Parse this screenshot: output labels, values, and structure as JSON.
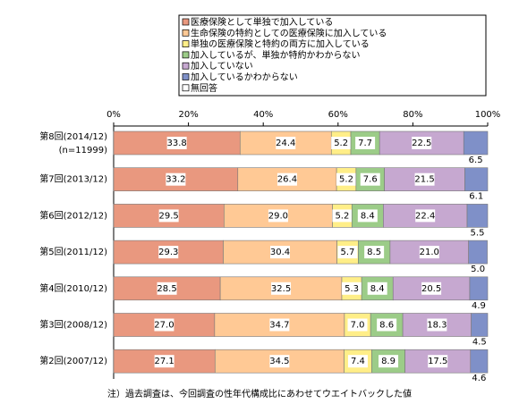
{
  "chart_data": {
    "type": "stacked-barh",
    "categories": [
      "第8回(2014/12)",
      "第7回(2013/12)",
      "第6回(2012/12)",
      "第5回(2011/12)",
      "第4回(2010/12)",
      "第3回(2008/12)",
      "第2回(2007/12)"
    ],
    "sample_size": "(n=11999)",
    "xlim": [
      0,
      100
    ],
    "xticks": [
      {
        "value": 0,
        "label": "0%"
      },
      {
        "value": 20,
        "label": "20%"
      },
      {
        "value": 40,
        "label": "40%"
      },
      {
        "value": 60,
        "label": "60%"
      },
      {
        "value": 80,
        "label": "80%"
      },
      {
        "value": 100,
        "label": "100%"
      }
    ],
    "series": [
      {
        "name": "医療保険として単独で加入している",
        "color": "#e9987f",
        "values": [
          33.8,
          33.2,
          29.5,
          29.3,
          28.5,
          27.0,
          27.1
        ],
        "value_labels": [
          "33.8",
          "33.2",
          "29.5",
          "29.3",
          "28.5",
          "27.0",
          "27.1"
        ]
      },
      {
        "name": "生命保険の特約としての医療保険に加入している",
        "color": "#ffc995",
        "values": [
          24.4,
          26.4,
          29.0,
          30.4,
          32.5,
          34.7,
          34.5
        ],
        "value_labels": [
          "24.4",
          "26.4",
          "29.0",
          "30.4",
          "32.5",
          "34.7",
          "34.5"
        ]
      },
      {
        "name": "単独の医療保険と特約の両方に加入している",
        "color": "#ffee88",
        "values": [
          5.2,
          5.2,
          5.2,
          5.7,
          5.3,
          7.0,
          7.4
        ],
        "value_labels": [
          "5.2",
          "5.2",
          "5.2",
          "5.7",
          "5.3",
          "7.0",
          "7.4"
        ]
      },
      {
        "name": "加入しているが、単独か特約かわからない",
        "color": "#9ccc88",
        "values": [
          7.7,
          7.6,
          8.4,
          8.5,
          8.4,
          8.6,
          8.9
        ],
        "value_labels": [
          "7.7",
          "7.6",
          "8.4",
          "8.5",
          "8.4",
          "8.6",
          "8.9"
        ]
      },
      {
        "name": "加入していない",
        "color": "#c6a8d0",
        "values": [
          22.5,
          21.5,
          22.4,
          21.0,
          20.5,
          18.3,
          17.5
        ],
        "value_labels": [
          "22.5",
          "21.5",
          "22.4",
          "21.0",
          "20.5",
          "18.3",
          "17.5"
        ]
      },
      {
        "name": "加入しているかわからない",
        "color": "#7f90c8",
        "values": [
          6.5,
          6.1,
          5.5,
          5.0,
          4.9,
          4.5,
          4.6
        ],
        "value_labels": [
          "6.5",
          "6.1",
          "5.5",
          "5.0",
          "4.9",
          "4.5",
          "4.6"
        ]
      },
      {
        "name": "無回答",
        "color": "#ffffff",
        "values": [
          null,
          null,
          null,
          null,
          null,
          null,
          null
        ]
      }
    ],
    "note": "注）過去調査は、今回調査の性年代構成比にあわせてウエイトバックした値"
  }
}
